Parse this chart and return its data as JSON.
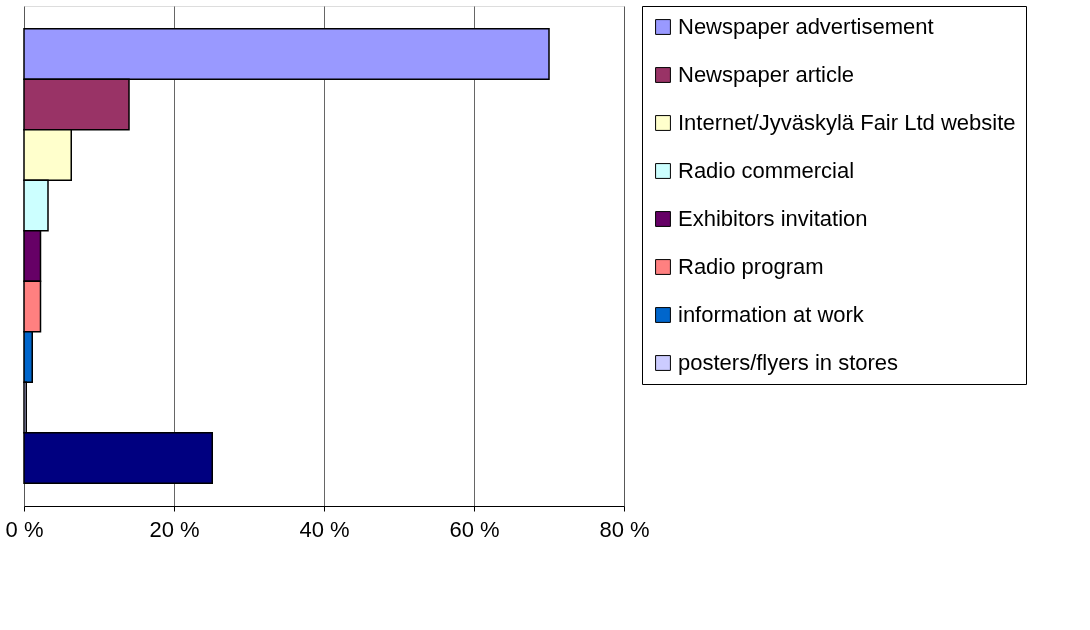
{
  "chart_data": {
    "type": "bar",
    "orientation": "horizontal",
    "categories": [
      null
    ],
    "series": [
      {
        "name": "Newspaper advertisement",
        "color": "#9999ff",
        "values": [
          70
        ]
      },
      {
        "name": "Newspaper article",
        "color": "#993366",
        "values": [
          14
        ]
      },
      {
        "name": "Internet/Jyväskylä Fair Ltd website",
        "color": "#ffffcc",
        "values": [
          6.3
        ]
      },
      {
        "name": "Radio commercial",
        "color": "#ccffff",
        "values": [
          3.2
        ]
      },
      {
        "name": "Exhibitors invitation",
        "color": "#660066",
        "values": [
          2.2
        ]
      },
      {
        "name": "Radio program",
        "color": "#ff8080",
        "values": [
          2.2
        ]
      },
      {
        "name": "information at work",
        "color": "#0066cc",
        "values": [
          1.1
        ]
      },
      {
        "name": "posters/flyers in stores",
        "color": "#ccccff",
        "values": [
          0.3
        ]
      },
      {
        "color": "#000080",
        "values": [
          25.1
        ]
      }
    ],
    "xlim": [
      0,
      80
    ],
    "xticks": [
      {
        "value": 0,
        "label": "0 %"
      },
      {
        "value": 20,
        "label": "20 %"
      },
      {
        "value": 40,
        "label": "40 %"
      },
      {
        "value": 60,
        "label": "60 %"
      },
      {
        "value": 80,
        "label": "80 %"
      }
    ],
    "grid": "x",
    "legend": "right"
  }
}
